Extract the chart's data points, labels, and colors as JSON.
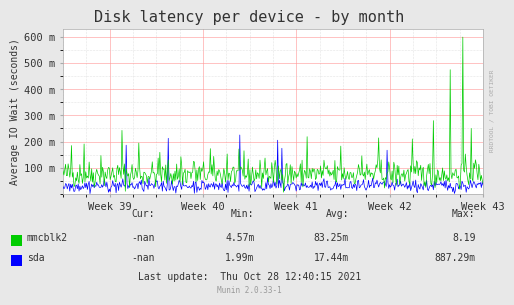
{
  "title": "Disk latency per device - by month",
  "ylabel": "Average IO Wait (seconds)",
  "background_color": "#e8e8e8",
  "plot_bg_color": "#ffffff",
  "grid_color_major": "#ff9999",
  "grid_color_minor": "#cccccc",
  "ylim": [
    0,
    632
  ],
  "yticks": [
    100,
    200,
    300,
    400,
    500,
    600
  ],
  "ytick_labels": [
    "100 m",
    "200 m",
    "300 m",
    "400 m",
    "500 m",
    "600 m"
  ],
  "xtick_labels": [
    "Week 39",
    "Week 40",
    "Week 41",
    "Week 42",
    "Week 43"
  ],
  "title_fontsize": 11,
  "axis_fontsize": 7,
  "tick_fontsize": 7.5,
  "watermark": "RRDTOOL / TOBI OETIKER",
  "legend_mmcblk2_color": "#00cc00",
  "legend_sda_color": "#0000ff",
  "legend_mmcblk2_cur": "-nan",
  "legend_mmcblk2_min": "4.57m",
  "legend_mmcblk2_avg": "83.25m",
  "legend_mmcblk2_max": "8.19",
  "legend_sda_cur": "-nan",
  "legend_sda_min": "1.99m",
  "legend_sda_avg": "17.44m",
  "legend_sda_max": "887.29m",
  "last_update": "Last update:  Thu Oct 28 12:40:15 2021",
  "munin_version": "Munin 2.0.33-1",
  "n_points": 500,
  "seed": 42
}
